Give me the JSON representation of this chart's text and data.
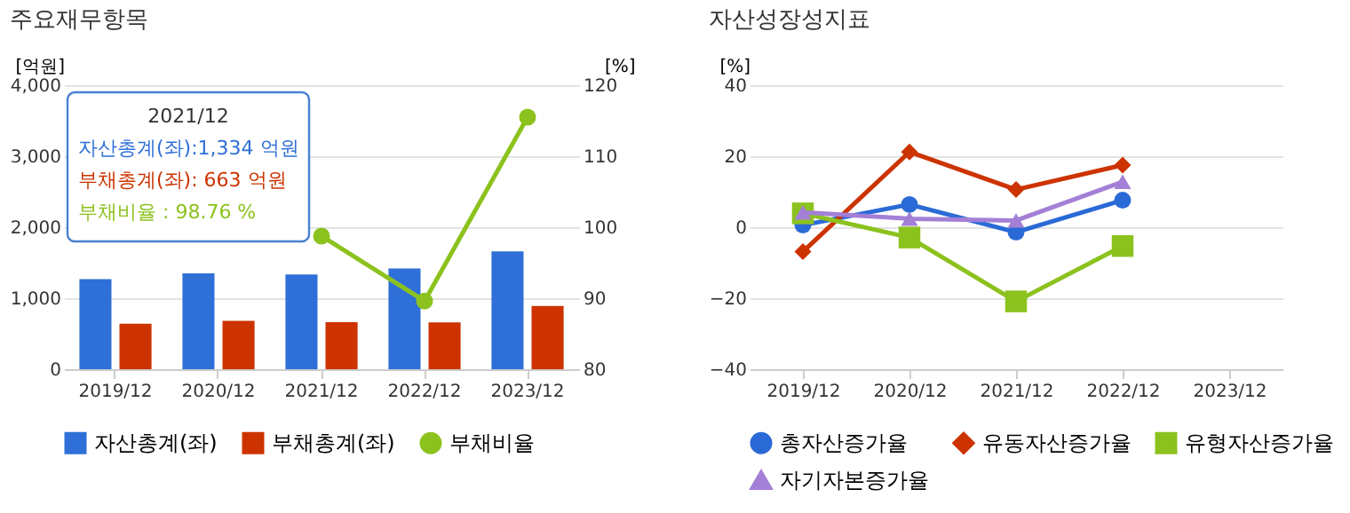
{
  "chart_data": [
    {
      "type": "bar",
      "title": "주요재무항목",
      "ylabel": "[억원]",
      "y2label": "[%]",
      "categories": [
        "2019/12",
        "2020/12",
        "2021/12",
        "2022/12",
        "2023/12"
      ],
      "series": [
        {
          "name": "자산총계(좌)",
          "type": "bar",
          "color": "#2f6fd8",
          "values": [
            1270,
            1350,
            1334,
            1420,
            1660
          ]
        },
        {
          "name": "부채총계(좌)",
          "type": "bar",
          "color": "#cc3300",
          "values": [
            640,
            680,
            663,
            660,
            890
          ]
        },
        {
          "name": "부채비율",
          "type": "line",
          "axis": "y2",
          "marker": "circle",
          "color": "#8cc21e",
          "values": [
            null,
            null,
            98.76,
            89.6,
            115.5
          ]
        }
      ],
      "ylim": [
        0,
        4000
      ],
      "yticks": [
        0,
        {
          "value": 1000,
          "label": "1,000"
        },
        {
          "value": 2000,
          "label": "2,000"
        },
        {
          "value": 3000,
          "label": "3,000"
        },
        {
          "value": 4000,
          "label": "4,000"
        }
      ],
      "y2lim": [
        80,
        120
      ],
      "y2ticks": [
        80,
        90,
        100,
        110,
        120
      ],
      "grid": "y",
      "legend": "bottom",
      "annotations": [
        "2021/12",
        "자산총계(좌):1,334 억원",
        "부채총계(좌):  663 억원",
        "부채비율     :   98.76 %"
      ]
    },
    {
      "type": "line",
      "title": "자산성장성지표",
      "ylabel": "[%]",
      "categories": [
        "2019/12",
        "2020/12",
        "2021/12",
        "2022/12",
        "2023/12"
      ],
      "series": [
        {
          "name": "총자산증가율",
          "marker": "circle",
          "color": "#2a6ad6",
          "values": [
            0.6,
            6.4,
            -1.4,
            7.6,
            null
          ]
        },
        {
          "name": "유동자산증가율",
          "marker": "diamond",
          "color": "#cc3300",
          "values": [
            -6.9,
            21.2,
            10.6,
            17.5,
            null
          ]
        },
        {
          "name": "유형자산증가율",
          "marker": "square",
          "color": "#8cc21e",
          "values": [
            3.9,
            -2.9,
            -20.9,
            -5.3,
            null
          ]
        },
        {
          "name": "자기자본증가율",
          "marker": "triangle",
          "color": "#a37fd6",
          "values": [
            4.2,
            2.4,
            1.9,
            12.8,
            null
          ]
        }
      ],
      "ylim": [
        -40,
        40
      ],
      "yticks": [
        -40,
        -20,
        0,
        20,
        40
      ],
      "grid": "y",
      "legend": "bottom"
    }
  ]
}
